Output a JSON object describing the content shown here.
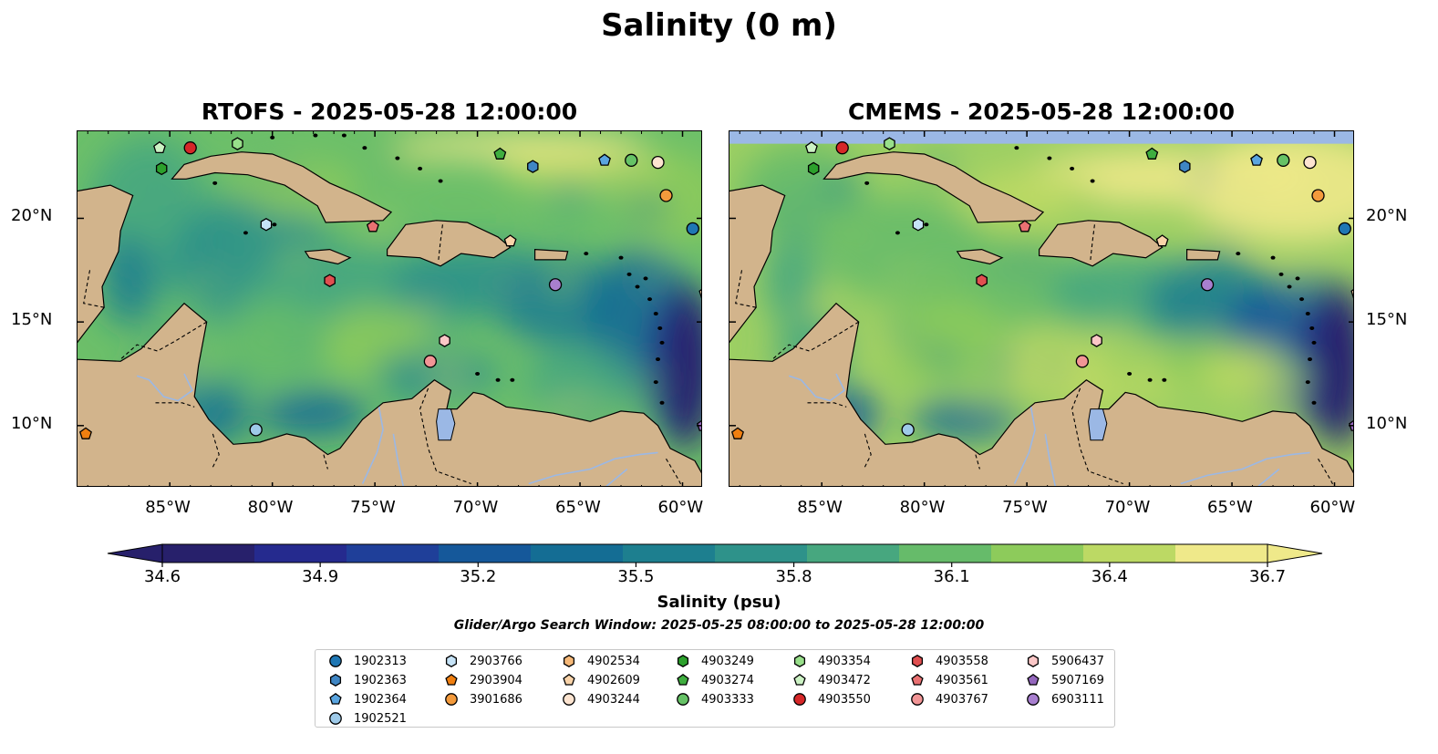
{
  "figure": {
    "title": "Salinity (0 m)",
    "panels": [
      {
        "title": "RTOFS - 2025-05-28 12:00:00",
        "has_top_band": false
      },
      {
        "title": "CMEMS - 2025-05-28 12:00:00",
        "has_top_band": true
      }
    ],
    "lon_ticks": [
      "85°W",
      "80°W",
      "75°W",
      "70°W",
      "65°W",
      "60°W"
    ],
    "lat_ticks": [
      "20°N",
      "15°N",
      "10°N"
    ],
    "extent": {
      "lon": [
        -89.5,
        -59
      ],
      "lat": [
        7,
        24.2
      ]
    }
  },
  "colorbar": {
    "label": "Salinity (psu)",
    "ticks": [
      "34.6",
      "34.9",
      "35.2",
      "35.5",
      "35.8",
      "36.1",
      "36.4",
      "36.7"
    ],
    "range": [
      34.6,
      36.7
    ],
    "colormap": [
      "#27206b",
      "#252a8e",
      "#1f3f99",
      "#15589a",
      "#146d94",
      "#1d7f8f",
      "#2e928a",
      "#47a77f",
      "#66bb6a",
      "#8dcb5b",
      "#bcd964",
      "#efe98a"
    ],
    "land_color": "#d2b48c",
    "lake_color": "#9bb8e5"
  },
  "search_window": "Glider/Argo Search Window: 2025-05-25 08:00:00 to 2025-05-28 12:00:00",
  "legend": {
    "columns": [
      [
        {
          "id": "1902313",
          "marker": "circle",
          "color": "#1f77b4"
        },
        {
          "id": "1902363",
          "marker": "hexagon",
          "color": "#3f86c4"
        },
        {
          "id": "1902364",
          "marker": "pentagon",
          "color": "#5aa5e0"
        },
        {
          "id": "1902521",
          "marker": "circle",
          "color": "#9ecae9"
        }
      ],
      [
        {
          "id": "2903766",
          "marker": "hexagon",
          "color": "#c6e3f7"
        },
        {
          "id": "2903904",
          "marker": "pentagon",
          "color": "#f07f10"
        },
        {
          "id": "3901686",
          "marker": "circle",
          "color": "#f39a3c"
        }
      ],
      [
        {
          "id": "4902534",
          "marker": "hexagon",
          "color": "#f5b878"
        },
        {
          "id": "4902609",
          "marker": "pentagon",
          "color": "#f9d3a9"
        },
        {
          "id": "4903244",
          "marker": "circle",
          "color": "#fde4d0"
        }
      ],
      [
        {
          "id": "4903249",
          "marker": "hexagon",
          "color": "#2ca02c"
        },
        {
          "id": "4903274",
          "marker": "pentagon",
          "color": "#3fae3f"
        },
        {
          "id": "4903333",
          "marker": "circle",
          "color": "#66c266"
        }
      ],
      [
        {
          "id": "4903354",
          "marker": "hexagon",
          "color": "#98df8a"
        },
        {
          "id": "4903472",
          "marker": "pentagon",
          "color": "#ccf2c4"
        },
        {
          "id": "4903550",
          "marker": "circle",
          "color": "#d62728"
        }
      ],
      [
        {
          "id": "4903558",
          "marker": "hexagon",
          "color": "#e04f50"
        },
        {
          "id": "4903561",
          "marker": "pentagon",
          "color": "#ea7172"
        },
        {
          "id": "4903767",
          "marker": "circle",
          "color": "#f29596"
        }
      ],
      [
        {
          "id": "5906437",
          "marker": "hexagon",
          "color": "#fbc7c7"
        },
        {
          "id": "5907169",
          "marker": "pentagon",
          "color": "#9467bd"
        },
        {
          "id": "6903111",
          "marker": "circle",
          "color": "#a87fcf"
        }
      ]
    ]
  },
  "floats": [
    {
      "id": "4903472",
      "lon": -85.5,
      "lat": 23.4
    },
    {
      "id": "4903550",
      "lon": -84.0,
      "lat": 23.4
    },
    {
      "id": "4903354",
      "lon": -81.7,
      "lat": 23.6
    },
    {
      "id": "4903249",
      "lon": -85.4,
      "lat": 22.4
    },
    {
      "id": "4903274",
      "lon": -68.9,
      "lat": 23.1
    },
    {
      "id": "1902363",
      "lon": -67.3,
      "lat": 22.5
    },
    {
      "id": "1902364",
      "lon": -63.8,
      "lat": 22.8
    },
    {
      "id": "4903333",
      "lon": -62.5,
      "lat": 22.8
    },
    {
      "id": "4903244",
      "lon": -61.2,
      "lat": 22.7
    },
    {
      "id": "3901686",
      "lon": -60.8,
      "lat": 21.1
    },
    {
      "id": "1902313",
      "lon": -59.5,
      "lat": 19.5
    },
    {
      "id": "2903766",
      "lon": -80.3,
      "lat": 19.7
    },
    {
      "id": "4903561",
      "lon": -75.1,
      "lat": 19.6
    },
    {
      "id": "4902609",
      "lon": -68.4,
      "lat": 18.9
    },
    {
      "id": "4903558",
      "lon": -77.2,
      "lat": 17.0
    },
    {
      "id": "6903111",
      "lon": -66.2,
      "lat": 16.8
    },
    {
      "id": "4902609",
      "lon": -58.9,
      "lat": 16.4
    },
    {
      "id": "5906437",
      "lon": -71.6,
      "lat": 14.1
    },
    {
      "id": "4903767",
      "lon": -72.3,
      "lat": 13.1
    },
    {
      "id": "1902521",
      "lon": -80.8,
      "lat": 9.8
    },
    {
      "id": "2903904",
      "lon": -89.1,
      "lat": 9.6
    },
    {
      "id": "5907169",
      "lon": -59.0,
      "lat": 10.0
    }
  ]
}
